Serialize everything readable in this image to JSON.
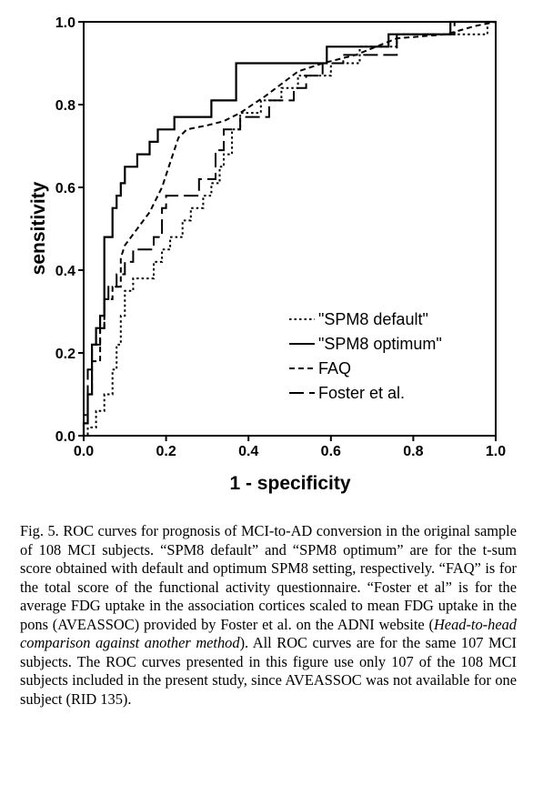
{
  "chart_data": {
    "type": "line",
    "title": "",
    "xlabel": "1 - specificity",
    "ylabel": "sensitivity",
    "xlim": [
      0,
      1
    ],
    "ylim": [
      0,
      1
    ],
    "x_ticks": [
      "0.0",
      "0.2",
      "0.4",
      "0.6",
      "0.8",
      "1.0"
    ],
    "y_ticks": [
      "0.0",
      "0.2",
      "0.4",
      "0.6",
      "0.8",
      "1.0"
    ],
    "grid": false,
    "legend_position": "bottom-right",
    "series": [
      {
        "name": "\"SPM8 default\"",
        "style": "dotted",
        "points": [
          [
            0,
            0
          ],
          [
            0.01,
            0
          ],
          [
            0.01,
            0.02
          ],
          [
            0.03,
            0.02
          ],
          [
            0.03,
            0.06
          ],
          [
            0.05,
            0.06
          ],
          [
            0.05,
            0.1
          ],
          [
            0.07,
            0.1
          ],
          [
            0.07,
            0.16
          ],
          [
            0.08,
            0.16
          ],
          [
            0.08,
            0.22
          ],
          [
            0.09,
            0.22
          ],
          [
            0.09,
            0.29
          ],
          [
            0.1,
            0.29
          ],
          [
            0.1,
            0.35
          ],
          [
            0.12,
            0.35
          ],
          [
            0.12,
            0.38
          ],
          [
            0.17,
            0.38
          ],
          [
            0.17,
            0.42
          ],
          [
            0.19,
            0.42
          ],
          [
            0.19,
            0.45
          ],
          [
            0.21,
            0.45
          ],
          [
            0.21,
            0.48
          ],
          [
            0.24,
            0.48
          ],
          [
            0.24,
            0.52
          ],
          [
            0.26,
            0.52
          ],
          [
            0.26,
            0.55
          ],
          [
            0.29,
            0.55
          ],
          [
            0.29,
            0.58
          ],
          [
            0.31,
            0.58
          ],
          [
            0.31,
            0.61
          ],
          [
            0.33,
            0.61
          ],
          [
            0.33,
            0.65
          ],
          [
            0.34,
            0.65
          ],
          [
            0.34,
            0.68
          ],
          [
            0.36,
            0.68
          ],
          [
            0.36,
            0.74
          ],
          [
            0.38,
            0.74
          ],
          [
            0.38,
            0.78
          ],
          [
            0.43,
            0.78
          ],
          [
            0.43,
            0.81
          ],
          [
            0.48,
            0.81
          ],
          [
            0.48,
            0.84
          ],
          [
            0.52,
            0.84
          ],
          [
            0.52,
            0.87
          ],
          [
            0.6,
            0.87
          ],
          [
            0.6,
            0.9
          ],
          [
            0.67,
            0.9
          ],
          [
            0.67,
            0.94
          ],
          [
            0.76,
            0.94
          ],
          [
            0.76,
            0.97
          ],
          [
            0.98,
            0.97
          ],
          [
            0.98,
            1
          ],
          [
            1,
            1
          ]
        ]
      },
      {
        "name": "\"SPM8 optimum\"",
        "style": "solid",
        "points": [
          [
            0,
            0
          ],
          [
            0,
            0.03
          ],
          [
            0.01,
            0.03
          ],
          [
            0.01,
            0.1
          ],
          [
            0.02,
            0.1
          ],
          [
            0.02,
            0.22
          ],
          [
            0.03,
            0.22
          ],
          [
            0.03,
            0.26
          ],
          [
            0.04,
            0.26
          ],
          [
            0.04,
            0.29
          ],
          [
            0.05,
            0.29
          ],
          [
            0.05,
            0.48
          ],
          [
            0.07,
            0.48
          ],
          [
            0.07,
            0.55
          ],
          [
            0.08,
            0.55
          ],
          [
            0.08,
            0.58
          ],
          [
            0.09,
            0.58
          ],
          [
            0.09,
            0.61
          ],
          [
            0.1,
            0.61
          ],
          [
            0.1,
            0.65
          ],
          [
            0.13,
            0.65
          ],
          [
            0.13,
            0.68
          ],
          [
            0.16,
            0.68
          ],
          [
            0.16,
            0.71
          ],
          [
            0.18,
            0.71
          ],
          [
            0.18,
            0.74
          ],
          [
            0.22,
            0.74
          ],
          [
            0.22,
            0.77
          ],
          [
            0.31,
            0.77
          ],
          [
            0.31,
            0.81
          ],
          [
            0.37,
            0.81
          ],
          [
            0.37,
            0.9
          ],
          [
            0.59,
            0.9
          ],
          [
            0.59,
            0.94
          ],
          [
            0.74,
            0.94
          ],
          [
            0.74,
            0.97
          ],
          [
            0.89,
            0.97
          ],
          [
            0.89,
            1
          ],
          [
            1,
            1
          ]
        ]
      },
      {
        "name": "FAQ",
        "style": "dashed",
        "points": [
          [
            0,
            0
          ],
          [
            0,
            0.05
          ],
          [
            0.01,
            0.05
          ],
          [
            0.01,
            0.1
          ],
          [
            0.02,
            0.1
          ],
          [
            0.02,
            0.18
          ],
          [
            0.04,
            0.18
          ],
          [
            0.04,
            0.26
          ],
          [
            0.05,
            0.26
          ],
          [
            0.05,
            0.33
          ],
          [
            0.07,
            0.33
          ],
          [
            0.07,
            0.36
          ],
          [
            0.09,
            0.36
          ],
          [
            0.09,
            0.4
          ],
          [
            0.09,
            0.43
          ],
          [
            0.1,
            0.46
          ],
          [
            0.13,
            0.5
          ],
          [
            0.16,
            0.54
          ],
          [
            0.19,
            0.6
          ],
          [
            0.21,
            0.66
          ],
          [
            0.23,
            0.72
          ],
          [
            0.25,
            0.74
          ],
          [
            0.3,
            0.75
          ],
          [
            0.34,
            0.76
          ],
          [
            0.38,
            0.78
          ],
          [
            0.44,
            0.82
          ],
          [
            0.48,
            0.85
          ],
          [
            0.52,
            0.88
          ],
          [
            0.58,
            0.9
          ],
          [
            0.66,
            0.92
          ],
          [
            0.76,
            0.96
          ],
          [
            0.88,
            0.97
          ],
          [
            0.95,
            0.99
          ],
          [
            1,
            1
          ]
        ]
      },
      {
        "name": "Foster et al.",
        "style": "longdash",
        "points": [
          [
            0,
            0
          ],
          [
            0,
            0.03
          ],
          [
            0.01,
            0.03
          ],
          [
            0.01,
            0.16
          ],
          [
            0.02,
            0.16
          ],
          [
            0.02,
            0.22
          ],
          [
            0.04,
            0.22
          ],
          [
            0.04,
            0.26
          ],
          [
            0.05,
            0.26
          ],
          [
            0.05,
            0.33
          ],
          [
            0.06,
            0.33
          ],
          [
            0.06,
            0.36
          ],
          [
            0.08,
            0.36
          ],
          [
            0.08,
            0.39
          ],
          [
            0.1,
            0.39
          ],
          [
            0.1,
            0.42
          ],
          [
            0.12,
            0.42
          ],
          [
            0.12,
            0.45
          ],
          [
            0.17,
            0.45
          ],
          [
            0.17,
            0.48
          ],
          [
            0.19,
            0.48
          ],
          [
            0.19,
            0.55
          ],
          [
            0.2,
            0.55
          ],
          [
            0.2,
            0.58
          ],
          [
            0.28,
            0.58
          ],
          [
            0.28,
            0.62
          ],
          [
            0.32,
            0.62
          ],
          [
            0.32,
            0.69
          ],
          [
            0.34,
            0.69
          ],
          [
            0.34,
            0.74
          ],
          [
            0.38,
            0.74
          ],
          [
            0.38,
            0.77
          ],
          [
            0.45,
            0.77
          ],
          [
            0.45,
            0.81
          ],
          [
            0.51,
            0.81
          ],
          [
            0.51,
            0.84
          ],
          [
            0.54,
            0.84
          ],
          [
            0.54,
            0.87
          ],
          [
            0.58,
            0.87
          ],
          [
            0.58,
            0.9
          ],
          [
            0.63,
            0.9
          ],
          [
            0.63,
            0.92
          ],
          [
            0.76,
            0.92
          ],
          [
            0.76,
            0.97
          ],
          [
            0.9,
            0.97
          ],
          [
            0.9,
            1
          ],
          [
            1,
            1
          ]
        ]
      }
    ]
  },
  "caption": {
    "part1": "Fig. 5. ROC curves for prognosis of MCI-to-AD conversion in the original sample of 108 MCI subjects. “SPM8 default” and “SPM8 optimum” are for the t-sum score obtained with default and optimum SPM8 setting, respectively. “FAQ” is for the total score of the functional activity questionnaire. “Foster et al” is for the average FDG uptake in the association cortices scaled to mean FDG uptake in the pons (AVEASSOC) provided by Foster et al. on the ADNI website (",
    "italic": "Head-to-head comparison against another method",
    "part2": "). All ROC curves are for the same 107 MCI subjects. The ROC curves presented in this figure use only 107 of the 108 MCI subjects included in the present study, since AVEASSOC was not available for one subject (RID 135)."
  }
}
